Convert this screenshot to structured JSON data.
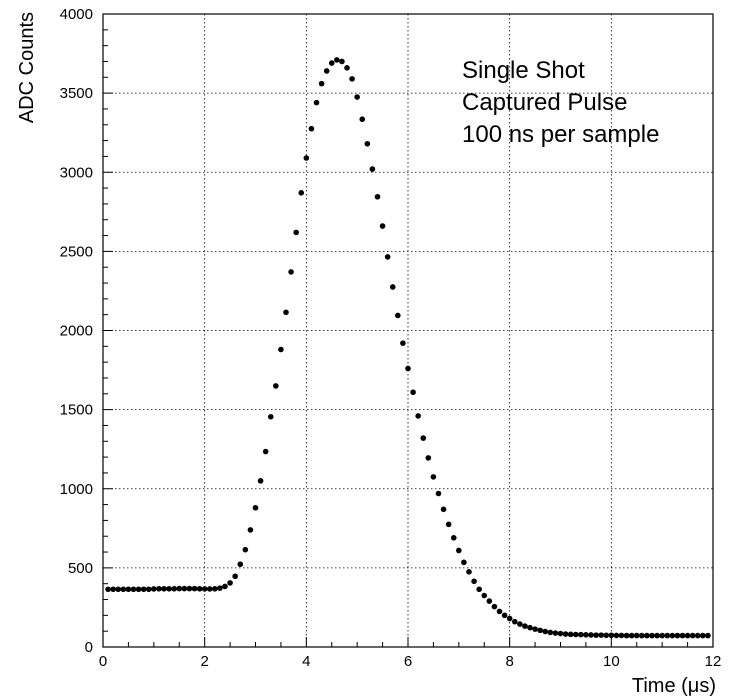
{
  "chart_data": {
    "type": "scatter",
    "title": "",
    "xlabel": "Time (μs)",
    "ylabel": "ADC Counts",
    "xlim": [
      0,
      12
    ],
    "ylim": [
      0,
      4000
    ],
    "xticks": [
      0,
      2,
      4,
      6,
      8,
      10,
      12
    ],
    "yticks": [
      0,
      500,
      1000,
      1500,
      2000,
      2500,
      3000,
      3500,
      4000
    ],
    "grid": true,
    "annotation": [
      "Single Shot",
      "Captured Pulse",
      "100 ns per sample"
    ],
    "marker_color": "#000000",
    "x": [
      0.1,
      0.2,
      0.3,
      0.4,
      0.5,
      0.6,
      0.7,
      0.8,
      0.9,
      1.0,
      1.1,
      1.2,
      1.3,
      1.4,
      1.5,
      1.6,
      1.7,
      1.8,
      1.9,
      2.0,
      2.1,
      2.2,
      2.3,
      2.4,
      2.5,
      2.6,
      2.7,
      2.8,
      2.9,
      3.0,
      3.1,
      3.2,
      3.3,
      3.4,
      3.5,
      3.6,
      3.7,
      3.8,
      3.9,
      4.0,
      4.1,
      4.2,
      4.3,
      4.4,
      4.5,
      4.6,
      4.7,
      4.8,
      4.9,
      5.0,
      5.1,
      5.2,
      5.3,
      5.4,
      5.5,
      5.6,
      5.7,
      5.8,
      5.9,
      6.0,
      6.1,
      6.2,
      6.3,
      6.4,
      6.5,
      6.6,
      6.7,
      6.8,
      6.9,
      7.0,
      7.1,
      7.2,
      7.3,
      7.4,
      7.5,
      7.6,
      7.7,
      7.8,
      7.9,
      8.0,
      8.1,
      8.2,
      8.3,
      8.4,
      8.5,
      8.6,
      8.7,
      8.8,
      8.9,
      9.0,
      9.1,
      9.2,
      9.3,
      9.4,
      9.5,
      9.6,
      9.7,
      9.8,
      9.9,
      10.0,
      10.1,
      10.2,
      10.3,
      10.4,
      10.5,
      10.6,
      10.7,
      10.8,
      10.9,
      11.0,
      11.1,
      11.2,
      11.3,
      11.4,
      11.5,
      11.6,
      11.7,
      11.8,
      11.9
    ],
    "y": [
      365,
      365,
      365,
      365,
      365,
      365,
      365,
      365,
      365,
      367,
      368,
      368,
      368,
      368,
      369,
      369,
      369,
      369,
      368,
      367,
      367,
      368,
      372,
      383,
      405,
      447,
      523,
      615,
      740,
      880,
      1050,
      1235,
      1455,
      1650,
      1880,
      2115,
      2370,
      2620,
      2870,
      3090,
      3275,
      3440,
      3560,
      3640,
      3690,
      3710,
      3700,
      3660,
      3590,
      3475,
      3335,
      3180,
      3020,
      2845,
      2660,
      2465,
      2275,
      2095,
      1920,
      1760,
      1610,
      1460,
      1320,
      1195,
      1075,
      970,
      870,
      775,
      690,
      610,
      535,
      475,
      415,
      365,
      325,
      290,
      255,
      225,
      200,
      180,
      160,
      145,
      132,
      122,
      113,
      105,
      98,
      92,
      88,
      85,
      82,
      80,
      79,
      78,
      77,
      76,
      75,
      75,
      74,
      74,
      73,
      73,
      72,
      72,
      72,
      72,
      72,
      72,
      72,
      72,
      72,
      72,
      72,
      72,
      72,
      72,
      72,
      72,
      72
    ]
  }
}
